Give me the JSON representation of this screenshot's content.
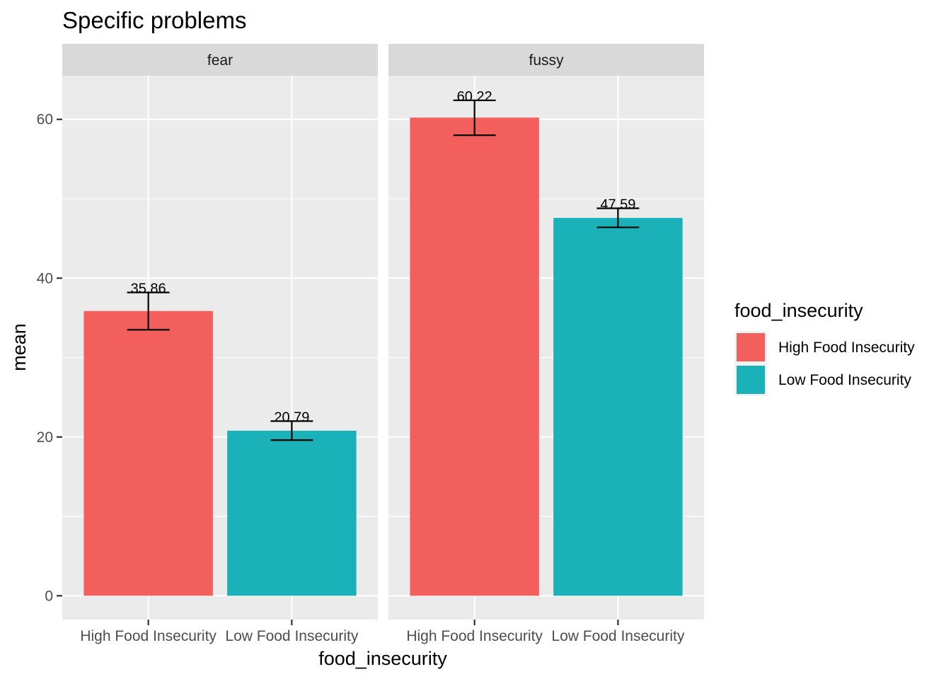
{
  "chart_data": {
    "type": "bar",
    "title": "Specific problems",
    "xlabel": "food_insecurity",
    "ylabel": "mean",
    "ylim": [
      -3,
      65.5
    ],
    "yticks": [
      0,
      20,
      40,
      60
    ],
    "categories": [
      "High Food Insecurity",
      "Low Food Insecurity"
    ],
    "colors": {
      "High Food Insecurity": "#F25F5C",
      "Low Food Insecurity": "#1AB2B8"
    },
    "legend": {
      "title": "food_insecurity",
      "position": "right",
      "entries": [
        "High Food Insecurity",
        "Low Food Insecurity"
      ]
    },
    "facets": [
      {
        "label": "fear",
        "bars": [
          {
            "category": "High Food Insecurity",
            "value": 35.86,
            "label": "35.86",
            "err_low": 33.5,
            "err_high": 38.2
          },
          {
            "category": "Low Food Insecurity",
            "value": 20.79,
            "label": "20.79",
            "err_low": 19.6,
            "err_high": 22.0
          }
        ]
      },
      {
        "label": "fussy",
        "bars": [
          {
            "category": "High Food Insecurity",
            "value": 60.22,
            "label": "60.22",
            "err_low": 58.0,
            "err_high": 62.4
          },
          {
            "category": "Low Food Insecurity",
            "value": 47.59,
            "label": "47.59",
            "err_low": 46.4,
            "err_high": 48.8
          }
        ]
      }
    ],
    "grid": true
  }
}
